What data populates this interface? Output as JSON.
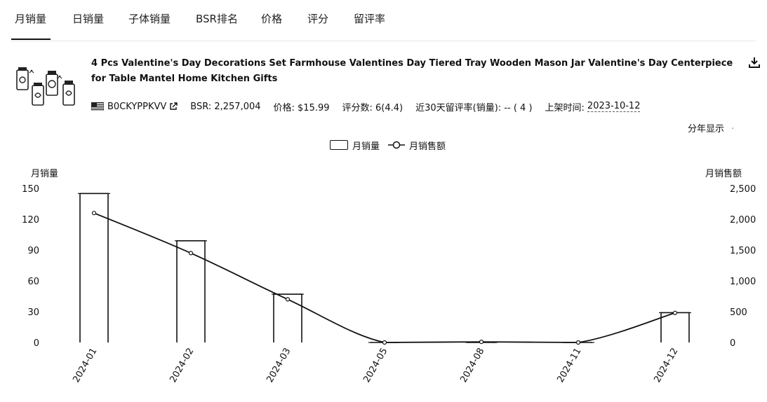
{
  "tabs": [
    {
      "label": "月销量"
    },
    {
      "label": "日销量"
    },
    {
      "label": "子体销量"
    },
    {
      "label": "BSR排名"
    },
    {
      "label": "价格"
    },
    {
      "label": "评分"
    },
    {
      "label": "留评率"
    }
  ],
  "active_tab": "月销量",
  "product": {
    "title": "4 Pcs Valentine's Day Decorations Set Farmhouse Valentines Day Tiered Tray Wooden Mason Jar Valentine's Day Centerpiece for Table Mantel Home Kitchen Gifts",
    "asin": "B0CKYPPKVV",
    "bsr": "BSR: 2,257,004",
    "price": "价格: $15.99",
    "rating": "评分数: 6(4.4)",
    "review_rate": "近30天留评率(销量): -- ( 4 )",
    "listed_label": "上架时间:",
    "listed_date": "2023-10-12"
  },
  "year_toggle": {
    "label": "分年显示",
    "indicator": "·"
  },
  "icons": {
    "download": "download-icon",
    "external": "external-link-icon",
    "flag": "us-flag-icon"
  },
  "chart_data": {
    "type": "bar",
    "categories": [
      "2024-01",
      "2024-02",
      "2024-03",
      "2024-05",
      "2024-08",
      "2024-11",
      "2024-12"
    ],
    "series": [
      {
        "name": "月销量",
        "type": "bar",
        "axis": "left",
        "values": [
          145,
          99,
          47,
          0,
          0,
          0,
          29
        ]
      },
      {
        "name": "月销售额",
        "type": "line",
        "axis": "right",
        "values": [
          2100,
          1450,
          700,
          0,
          10,
          0,
          480
        ]
      }
    ],
    "ylabel_left": "月销量",
    "ylabel_right": "月销售额",
    "ylim_left": [
      0,
      150
    ],
    "ylim_right": [
      0,
      2500
    ],
    "yticks_left": [
      "0",
      "30",
      "60",
      "90",
      "120",
      "150"
    ],
    "yticks_right": [
      "0",
      "500",
      "1,000",
      "1,500",
      "2,000",
      "2,500"
    ],
    "legend_position": "top-center",
    "grid": false
  }
}
